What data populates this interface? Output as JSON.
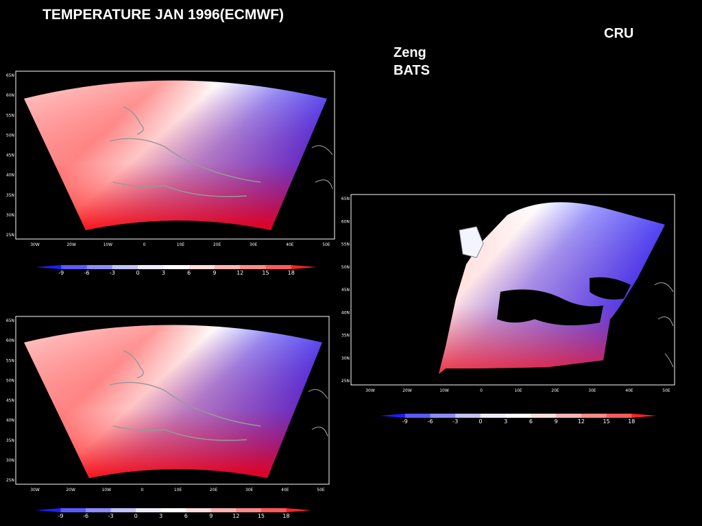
{
  "title": "TEMPERATURE JAN 1996(ECMWF)",
  "labels": {
    "cru": "CRU",
    "zeng": "Zeng",
    "bats": "BATS"
  },
  "panels": [
    {
      "id": "top-left",
      "lat_ticks": [
        "65N",
        "60N",
        "55N",
        "50N",
        "45N",
        "40N",
        "35N",
        "30N",
        "25N"
      ],
      "lon_ticks": [
        "30W",
        "20W",
        "10W",
        "0",
        "10E",
        "20E",
        "30E",
        "40E",
        "50E"
      ],
      "colorbar_ticks": [
        "-9",
        "-6",
        "-3",
        "0",
        "3",
        "6",
        "9",
        "12",
        "15",
        "18"
      ]
    },
    {
      "id": "bottom-left",
      "lat_ticks": [
        "65N",
        "60N",
        "55N",
        "50N",
        "45N",
        "40N",
        "35N",
        "30N",
        "25N"
      ],
      "lon_ticks": [
        "30W",
        "20W",
        "10W",
        "0",
        "10E",
        "20E",
        "30E",
        "40E",
        "50E"
      ],
      "colorbar_ticks": [
        "-9",
        "-6",
        "-3",
        "0",
        "3",
        "6",
        "9",
        "12",
        "15",
        "18"
      ]
    },
    {
      "id": "right",
      "lat_ticks": [
        "65N",
        "60N",
        "55N",
        "50N",
        "45N",
        "40N",
        "35N",
        "30N",
        "25N"
      ],
      "lon_ticks": [
        "30W",
        "20W",
        "10W",
        "0",
        "10E",
        "20E",
        "30E",
        "40E",
        "50E"
      ],
      "colorbar_ticks": [
        "-9",
        "-6",
        "-3",
        "0",
        "3",
        "6",
        "9",
        "12",
        "15",
        "18"
      ]
    }
  ],
  "colorbar_colors": [
    "#1f1fff",
    "#5a5aff",
    "#8c8cff",
    "#c2c2ff",
    "#ececff",
    "#ffffff",
    "#ffdede",
    "#ffb4b4",
    "#ff8a8a",
    "#ff5a5a",
    "#ff2222"
  ],
  "palette": {
    "cold": "#0000ff",
    "warm": "#ff0000",
    "land_border": "#888888",
    "background": "#000000"
  }
}
